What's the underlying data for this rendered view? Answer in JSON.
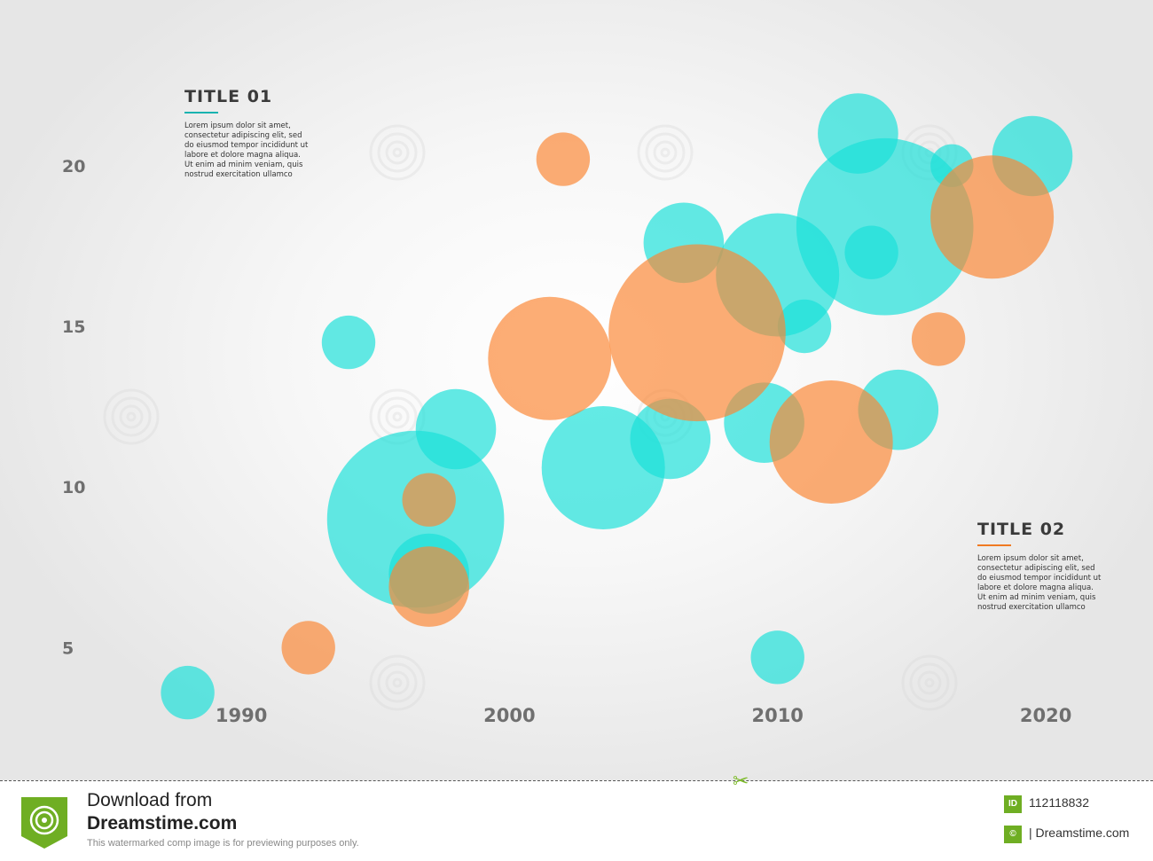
{
  "chart_data": {
    "type": "scatter",
    "subtype": "bubble",
    "x_ticks": [
      "1990",
      "2000",
      "2010",
      "2020"
    ],
    "y_ticks": [
      "5",
      "10",
      "15",
      "20"
    ],
    "xlim": [
      1981,
      2024
    ],
    "ylim": [
      1.7,
      23.5
    ],
    "grid": false,
    "series": [
      {
        "color": "#19e0d9",
        "points": [
          {
            "x": 1988,
            "y": 3.6,
            "r": 1.0
          },
          {
            "x": 1994,
            "y": 14.5,
            "r": 1.0
          },
          {
            "x": 1998,
            "y": 11.8,
            "r": 1.5
          },
          {
            "x": 1996.5,
            "y": 9.0,
            "r": 3.3
          },
          {
            "x": 1997,
            "y": 7.3,
            "r": 1.5
          },
          {
            "x": 2003.5,
            "y": 10.6,
            "r": 2.3
          },
          {
            "x": 2006.5,
            "y": 17.6,
            "r": 1.5
          },
          {
            "x": 2006,
            "y": 11.5,
            "r": 1.5
          },
          {
            "x": 2009.5,
            "y": 12.0,
            "r": 1.5
          },
          {
            "x": 2010,
            "y": 16.6,
            "r": 2.3
          },
          {
            "x": 2011,
            "y": 15.0,
            "r": 1.0
          },
          {
            "x": 2013.5,
            "y": 17.3,
            "r": 1.0
          },
          {
            "x": 2014.5,
            "y": 12.4,
            "r": 1.5
          },
          {
            "x": 2014,
            "y": 18.1,
            "r": 3.3
          },
          {
            "x": 2013,
            "y": 21.0,
            "r": 1.5
          },
          {
            "x": 2016.5,
            "y": 20.0,
            "r": 0.8
          },
          {
            "x": 2019.5,
            "y": 20.3,
            "r": 1.5
          },
          {
            "x": 2010,
            "y": 4.7,
            "r": 1.0
          }
        ]
      },
      {
        "color": "#fa8634",
        "points": [
          {
            "x": 2002,
            "y": 20.2,
            "r": 1.0
          },
          {
            "x": 1992.5,
            "y": 5.0,
            "r": 1.0
          },
          {
            "x": 1997,
            "y": 9.6,
            "r": 1.0
          },
          {
            "x": 1997,
            "y": 6.9,
            "r": 1.5
          },
          {
            "x": 2001.5,
            "y": 14.0,
            "r": 2.3
          },
          {
            "x": 2007,
            "y": 14.8,
            "r": 3.3
          },
          {
            "x": 2012,
            "y": 11.4,
            "r": 2.3
          },
          {
            "x": 2016,
            "y": 14.6,
            "r": 1.0
          },
          {
            "x": 2018,
            "y": 18.4,
            "r": 2.3
          }
        ]
      }
    ]
  },
  "note_1": {
    "title": "TITLE 01",
    "accent": "#19b3b0",
    "text": "Lorem ipsum dolor sit amet, consectetur adipiscing elit, sed do eiusmod tempor incididunt ut labore et dolore magna aliqua. Ut enim ad minim veniam, quis nostrud exercitation ullamco"
  },
  "note_2": {
    "title": "TITLE 02",
    "accent": "#f07a22",
    "text": "Lorem ipsum dolor sit amet, consectetur adipiscing elit, sed do eiusmod tempor incididunt ut labore et dolore magna aliqua. Ut enim ad minim veniam, quis nostrud exercitation ullamco"
  },
  "watermark": {
    "text": "dreamstime",
    "icon": "spiral-watermark-icon"
  },
  "footer": {
    "download": "Download from",
    "site": "Dreamstime.com",
    "note": "This watermarked comp image is for previewing purposes only.",
    "id_badge": "ID",
    "id_value": "112118832",
    "copy_badge": "©",
    "copy_value": "| Dreamstime.com",
    "icon": "scissors-icon",
    "logo_icon": "dreamstime-logo-icon"
  }
}
